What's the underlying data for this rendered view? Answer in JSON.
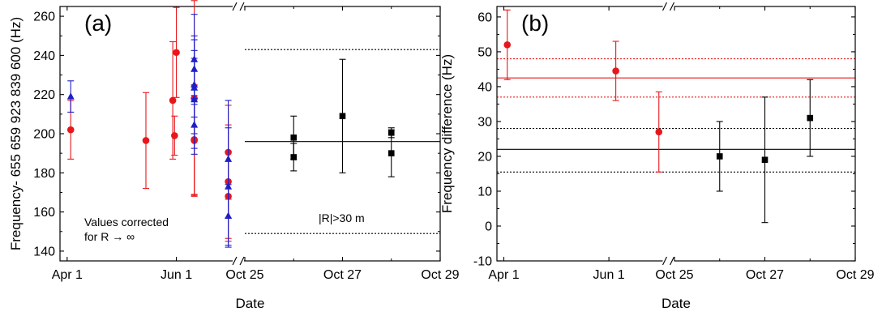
{
  "colors": {
    "red": "#e8161b",
    "blue": "#1f1fc8",
    "black": "#000000"
  },
  "chart_data": [
    {
      "type": "scatter",
      "panel_label": "(a)",
      "xlabel": "Date",
      "ylabel": "Frequency- 655 659 923 839 600 (Hz)",
      "ylim": [
        135,
        265
      ],
      "yticks": [
        140,
        160,
        180,
        200,
        220,
        240,
        260
      ],
      "x_axis_break": true,
      "x_segments": [
        {
          "unit": "day-of-year",
          "range": [
            "Mar 28",
            "Jul 2"
          ],
          "ticks": [
            {
              "at": "Apr 1",
              "label": "Apr 1"
            },
            {
              "at": "Jun 1",
              "label": "Jun 1"
            }
          ]
        },
        {
          "unit": "date",
          "range": [
            "Oct 25",
            "Oct 29"
          ],
          "ticks": [
            {
              "at": "Oct 25",
              "label": "Oct 25"
            },
            {
              "at": "Oct 27",
              "label": "Oct 27"
            },
            {
              "at": "Oct 29",
              "label": "Oct 29"
            }
          ]
        }
      ],
      "annotations": [
        {
          "text_lines": [
            "Values corrected",
            "for R → ∞"
          ]
        },
        {
          "text": "|R|>30 m"
        }
      ],
      "series": [
        {
          "color": "red",
          "marker": "circle",
          "points": [
            {
              "x": "Apr 3",
              "y": 202,
              "err": 15
            },
            {
              "x": "May 15",
              "y": 196.5,
              "err": 24.5
            },
            {
              "x": "May 30",
              "y": 217,
              "err": 30
            },
            {
              "x": "May 31",
              "y": 199,
              "err": 10
            },
            {
              "x": "Jun 1",
              "y": 241.5,
              "err": 23
            },
            {
              "x": "Jun 11",
              "y": 218,
              "err": 50
            },
            {
              "x": "Jun 11",
              "y": 197,
              "err": 28
            },
            {
              "x": "Jun 11",
              "y": 196.5,
              "err": 28
            },
            {
              "x": "Jun 30",
              "y": 190.5,
              "err": 24
            },
            {
              "x": "Jun 30",
              "y": 175.5,
              "err": 29
            },
            {
              "x": "Jun 30",
              "y": 168,
              "err": 23
            }
          ]
        },
        {
          "color": "blue",
          "marker": "triangle",
          "points": [
            {
              "x": "Apr 3",
              "y": 219,
              "err": 8
            },
            {
              "x": "Jun 11",
              "y": 238,
              "err": 23
            },
            {
              "x": "Jun 11",
              "y": 233,
              "err": 15
            },
            {
              "x": "Jun 11",
              "y": 225,
              "err": 25
            },
            {
              "x": "Jun 11",
              "y": 223.5,
              "err": 15
            },
            {
              "x": "Jun 11",
              "y": 217.5,
              "err": 25
            },
            {
              "x": "Jun 11",
              "y": 204.5,
              "err": 15
            },
            {
              "x": "Jun 30",
              "y": 187,
              "err": 30
            },
            {
              "x": "Jun 30",
              "y": 173,
              "err": 30
            },
            {
              "x": "Jun 30",
              "y": 158,
              "err": 16
            }
          ]
        },
        {
          "color": "black",
          "marker": "square",
          "points": [
            {
              "x": "Oct 26",
              "y": 198,
              "err": 11
            },
            {
              "x": "Oct 26",
              "y": 188,
              "err": 7
            },
            {
              "x": "Oct 27",
              "y": 209,
              "err": 29
            },
            {
              "x": "Oct 28",
              "y": 200.5,
              "err": 2.5
            },
            {
              "x": "Oct 28",
              "y": 190,
              "err": 12
            }
          ]
        }
      ],
      "reference_lines": [
        {
          "y": 196,
          "style": "solid",
          "color": "black",
          "segment": 2
        },
        {
          "y": 243,
          "style": "dotted",
          "color": "black",
          "segment": 2
        },
        {
          "y": 149,
          "style": "dotted",
          "color": "black",
          "segment": 2
        }
      ]
    },
    {
      "type": "scatter",
      "panel_label": "(b)",
      "xlabel": "Date",
      "ylabel": "Frequency difference (Hz)",
      "ylim": [
        -10,
        63
      ],
      "yticks": [
        -10,
        0,
        10,
        20,
        30,
        40,
        50,
        60
      ],
      "x_axis_break": true,
      "x_segments": [
        {
          "unit": "day-of-year",
          "range": [
            "Mar 28",
            "Jul 2"
          ],
          "ticks": [
            {
              "at": "Apr 1",
              "label": "Apr 1"
            },
            {
              "at": "Jun 1",
              "label": "Jun 1"
            }
          ]
        },
        {
          "unit": "date",
          "range": [
            "Oct 25",
            "Oct 29"
          ],
          "ticks": [
            {
              "at": "Oct 25",
              "label": "Oct 25"
            },
            {
              "at": "Oct 27",
              "label": "Oct 27"
            },
            {
              "at": "Oct 29",
              "label": "Oct 29"
            }
          ]
        }
      ],
      "series": [
        {
          "color": "red",
          "marker": "circle",
          "points": [
            {
              "x": "Apr 3",
              "y": 52,
              "err": 10
            },
            {
              "x": "Jun 5",
              "y": 44.5,
              "err": 8.5
            },
            {
              "x": "Jun 30",
              "y": 27,
              "err": 11.5
            }
          ]
        },
        {
          "color": "black",
          "marker": "square",
          "points": [
            {
              "x": "Oct 26",
              "y": 20,
              "err": 10
            },
            {
              "x": "Oct 27",
              "y": 19,
              "err": 18
            },
            {
              "x": "Oct 28",
              "y": 31,
              "err": 11
            }
          ]
        }
      ],
      "reference_lines": [
        {
          "y": 42.5,
          "style": "solid",
          "color": "red",
          "segment": "all"
        },
        {
          "y": 48,
          "style": "dotted",
          "color": "red",
          "segment": "all"
        },
        {
          "y": 37,
          "style": "dotted",
          "color": "red",
          "segment": "all"
        },
        {
          "y": 22,
          "style": "solid",
          "color": "black",
          "segment": "all"
        },
        {
          "y": 28,
          "style": "dotted",
          "color": "black",
          "segment": "all"
        },
        {
          "y": 15.5,
          "style": "dotted",
          "color": "black",
          "segment": "all"
        }
      ]
    }
  ]
}
